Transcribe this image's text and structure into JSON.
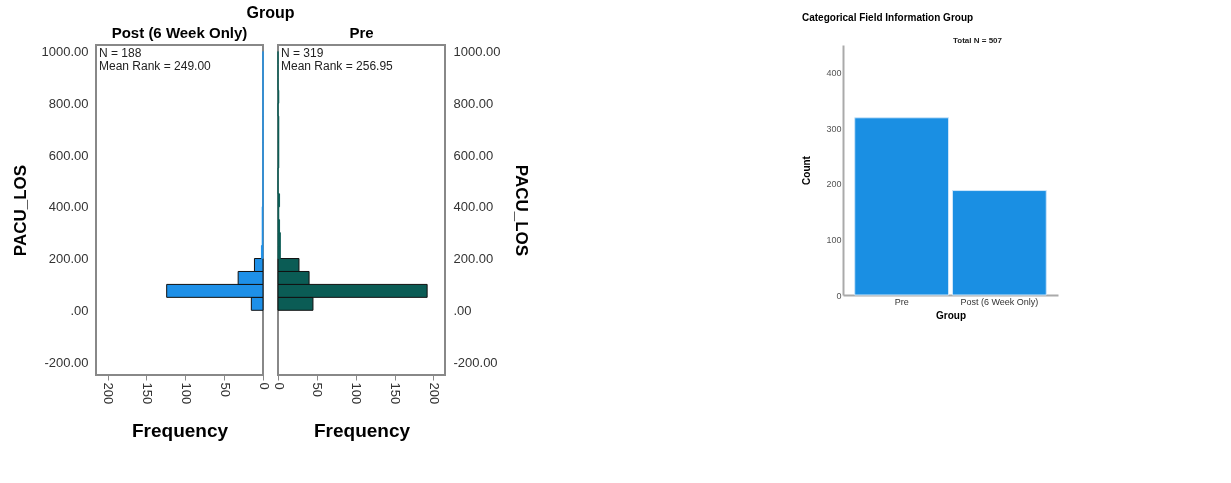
{
  "chart_data": [
    {
      "type": "histogram",
      "orientation": "horizontal",
      "title": "Group",
      "subtitle": "Post (6 Week Only)",
      "xlabel": "Frequency",
      "ylabel": "PACU_LOS",
      "color": "#1e90e8",
      "bins": [
        0,
        50,
        100,
        150,
        200,
        250,
        300,
        350,
        400,
        450,
        500,
        550,
        600,
        650,
        700,
        750,
        800,
        850,
        900,
        950,
        1000
      ],
      "values": [
        15,
        124,
        32,
        11,
        2,
        1,
        1,
        1,
        0,
        0,
        0,
        0,
        0,
        0,
        0,
        0,
        0,
        0,
        0,
        0
      ],
      "xlim": [
        215,
        0
      ],
      "xticks": [
        0,
        50,
        100,
        150,
        200
      ],
      "ylim": [
        -250,
        1025
      ],
      "yticks": [
        {
          "value": -200,
          "label": "-200.00"
        },
        {
          "value": 0,
          "label": ".00"
        },
        {
          "value": 200,
          "label": "200.00"
        },
        {
          "value": 400,
          "label": "400.00"
        },
        {
          "value": 600,
          "label": "600.00"
        },
        {
          "value": 800,
          "label": "800.00"
        },
        {
          "value": 1000,
          "label": "1000.00"
        }
      ],
      "annotations": [
        "N = 188",
        "Mean Rank = 249.00"
      ],
      "grid": false
    },
    {
      "type": "histogram",
      "orientation": "horizontal",
      "title": "Pre",
      "xlabel": "Frequency",
      "ylabel": "PACU_LOS",
      "color": "#0b5c55",
      "bins": [
        0,
        50,
        100,
        150,
        200,
        250,
        300,
        350,
        400,
        450,
        500,
        550,
        600,
        650,
        700,
        750,
        800,
        850,
        900,
        950,
        1000
      ],
      "values": [
        45,
        192,
        40,
        27,
        3,
        3,
        2,
        1,
        2,
        0,
        0,
        1,
        1,
        1,
        1,
        0,
        1,
        0,
        0,
        0
      ],
      "xlim": [
        0,
        215
      ],
      "xticks": [
        0,
        50,
        100,
        150,
        200
      ],
      "ylim": [
        -250,
        1025
      ],
      "yticks": [
        {
          "value": -200,
          "label": "-200.00"
        },
        {
          "value": 0,
          "label": ".00"
        },
        {
          "value": 200,
          "label": "200.00"
        },
        {
          "value": 400,
          "label": "400.00"
        },
        {
          "value": 600,
          "label": "600.00"
        },
        {
          "value": 800,
          "label": "800.00"
        },
        {
          "value": 1000,
          "label": "1000.00"
        }
      ],
      "annotations": [
        "N = 319",
        "Mean Rank = 256.95"
      ],
      "grid": false
    },
    {
      "type": "bar",
      "title": "Categorical Field Information Group",
      "xlabel": "Group",
      "ylabel": "Count",
      "color": "#1a8fe3",
      "categories": [
        "Pre",
        "Post (6 Week Only)"
      ],
      "values": [
        319,
        188
      ],
      "ylim": [
        0,
        450
      ],
      "yticks": [
        0,
        100,
        200,
        300,
        400
      ],
      "annotations": [
        "Total N =  507"
      ],
      "grid": false
    }
  ]
}
